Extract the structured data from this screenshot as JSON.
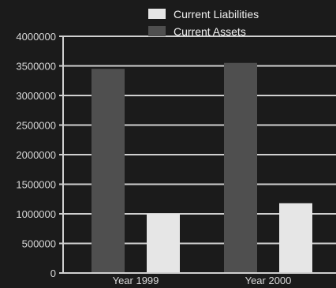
{
  "chart_data": {
    "type": "bar",
    "categories": [
      "Year 1999",
      "Year 2000"
    ],
    "series": [
      {
        "name": "Current Assets",
        "values": [
          3450000,
          3550000
        ],
        "color": "#4f4f4f"
      },
      {
        "name": "Current Liabilities",
        "values": [
          1000000,
          1180000
        ],
        "color": "#e6e6e6"
      }
    ],
    "legend": [
      "Current Liabilities",
      "Current Assets"
    ],
    "legend_position": "top-right",
    "ylim": [
      0,
      4000000
    ],
    "yticks": [
      "0",
      "500000",
      "1000000",
      "1500000",
      "2000000",
      "2500000",
      "3000000",
      "3500000",
      "4000000"
    ],
    "grid": true,
    "colors": {
      "background": "#1b1b1b",
      "grid": "#d0d0d0",
      "text": "#d8d8d8"
    }
  }
}
